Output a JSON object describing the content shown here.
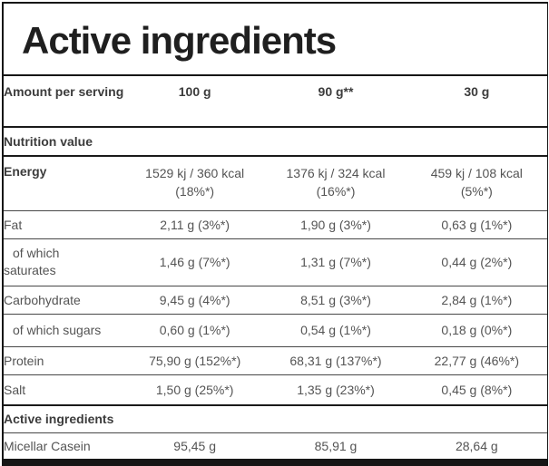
{
  "title": "Active ingredients",
  "table": {
    "header": {
      "label": "Amount per serving",
      "col1": "100 g",
      "col2": "90 g**",
      "col3": "30 g"
    },
    "nutrition_section": "Nutrition value",
    "energy": {
      "label": "Energy",
      "v1": "1529 kj / 360 kcal",
      "p1": "(18%*)",
      "v2": "1376 kj / 324 kcal",
      "p2": "(16%*)",
      "v3": "459 kj / 108 kcal",
      "p3": "(5%*)"
    },
    "rows": [
      {
        "label": "Fat",
        "v1": "2,11 g (3%*)",
        "v2": "1,90 g (3%*)",
        "v3": "0,63 g (1%*)"
      },
      {
        "label": "of which saturates",
        "v1": "1,46 g (7%*)",
        "v2": "1,31 g (7%*)",
        "v3": "0,44 g (2%*)"
      },
      {
        "label": "Carbohydrate",
        "v1": "9,45 g (4%*)",
        "v2": "8,51 g (3%*)",
        "v3": "2,84 g (1%*)"
      },
      {
        "label": "of which sugars",
        "v1": "0,60 g (1%*)",
        "v2": "0,54 g (1%*)",
        "v3": "0,18 g (0%*)"
      },
      {
        "label": "Protein",
        "v1": "75,90 g (152%*)",
        "v2": "68,31 g (137%*)",
        "v3": "22,77 g (46%*)"
      },
      {
        "label": "Salt",
        "v1": "1,50 g (25%*)",
        "v2": "1,35 g (23%*)",
        "v3": "0,45 g (8%*)"
      }
    ],
    "active_section": "Active ingredients",
    "active_row": {
      "label": "Micellar Casein",
      "v1": "95,45 g",
      "v2": "85,91 g",
      "v3": "28,64 g"
    }
  },
  "colors": {
    "frame": "#161616",
    "title_text": "#1f1f1f",
    "bold_text": "#3c3c3c",
    "body_text": "#545454",
    "row_line": "#474747",
    "section_line": "#1a1a1a"
  }
}
